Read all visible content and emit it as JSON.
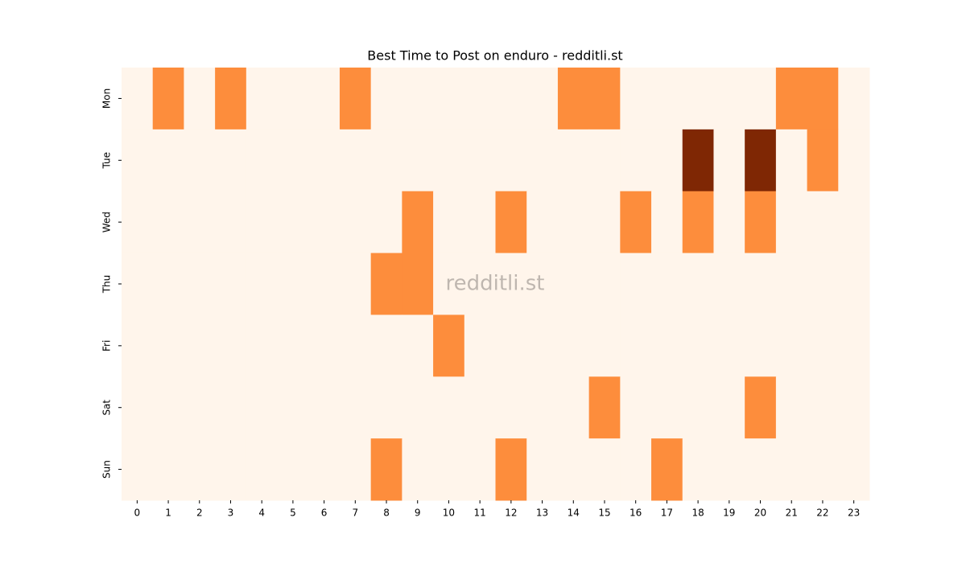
{
  "chart_data": {
    "type": "heatmap",
    "title": "Best Time to Post on enduro - redditli.st",
    "watermark": "redditli.st",
    "x_categories": [
      "0",
      "1",
      "2",
      "3",
      "4",
      "5",
      "6",
      "7",
      "8",
      "9",
      "10",
      "11",
      "12",
      "13",
      "14",
      "15",
      "16",
      "17",
      "18",
      "19",
      "20",
      "21",
      "22",
      "23"
    ],
    "y_categories": [
      "Mon",
      "Tue",
      "Wed",
      "Thu",
      "Fri",
      "Sat",
      "Sun"
    ],
    "values": [
      [
        0,
        1,
        0,
        1,
        0,
        0,
        0,
        1,
        0,
        0,
        0,
        0,
        0,
        0,
        1,
        1,
        0,
        0,
        0,
        0,
        0,
        1,
        1,
        0
      ],
      [
        0,
        0,
        0,
        0,
        0,
        0,
        0,
        0,
        0,
        0,
        0,
        0,
        0,
        0,
        0,
        0,
        0,
        0,
        2,
        0,
        2,
        0,
        1,
        0
      ],
      [
        0,
        0,
        0,
        0,
        0,
        0,
        0,
        0,
        0,
        1,
        0,
        0,
        1,
        0,
        0,
        0,
        1,
        0,
        1,
        0,
        1,
        0,
        0,
        0
      ],
      [
        0,
        0,
        0,
        0,
        0,
        0,
        0,
        0,
        1,
        1,
        0,
        0,
        0,
        0,
        0,
        0,
        0,
        0,
        0,
        0,
        0,
        0,
        0,
        0
      ],
      [
        0,
        0,
        0,
        0,
        0,
        0,
        0,
        0,
        0,
        0,
        1,
        0,
        0,
        0,
        0,
        0,
        0,
        0,
        0,
        0,
        0,
        0,
        0,
        0
      ],
      [
        0,
        0,
        0,
        0,
        0,
        0,
        0,
        0,
        0,
        0,
        0,
        0,
        0,
        0,
        0,
        1,
        0,
        0,
        0,
        0,
        1,
        0,
        0,
        0
      ],
      [
        0,
        0,
        0,
        0,
        0,
        0,
        0,
        0,
        1,
        0,
        0,
        0,
        1,
        0,
        0,
        0,
        0,
        1,
        0,
        0,
        0,
        0,
        0,
        0
      ]
    ],
    "zlim": [
      0,
      2
    ],
    "colormap": [
      "#fff5eb",
      "#fd8d3c",
      "#7f2704"
    ]
  }
}
